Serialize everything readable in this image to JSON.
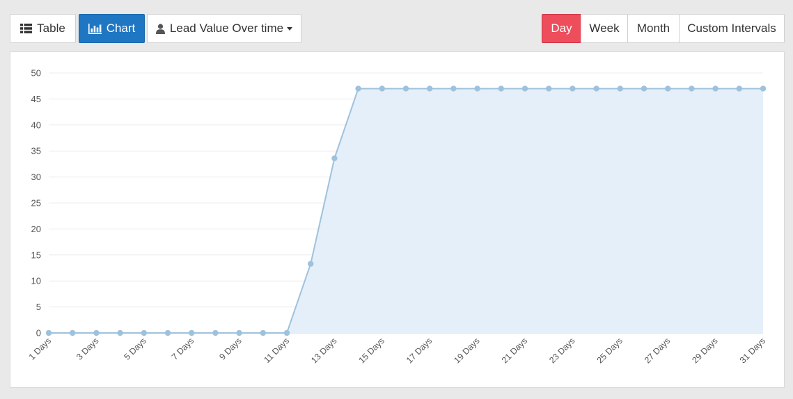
{
  "toolbar": {
    "table_label": "Table",
    "chart_label": "Chart",
    "metric_label": "Lead Value Over time",
    "intervals": [
      "Day",
      "Week",
      "Month",
      "Custom Intervals"
    ],
    "active_interval": "Day"
  },
  "colors": {
    "accent_blue": "#1f76c2",
    "accent_red": "#ee4d5c",
    "series_line": "#9ec2dc",
    "series_fill": "#e4eff9"
  },
  "icons": {
    "table": "list-icon",
    "chart": "bar-chart-icon",
    "metric": "user-icon"
  },
  "chart_data": {
    "type": "area",
    "x": [
      "1 Days",
      "2 Days",
      "3 Days",
      "4 Days",
      "5 Days",
      "6 Days",
      "7 Days",
      "8 Days",
      "9 Days",
      "10 Days",
      "11 Days",
      "12 Days",
      "13 Days",
      "14 Days",
      "15 Days",
      "16 Days",
      "17 Days",
      "18 Days",
      "19 Days",
      "20 Days",
      "21 Days",
      "22 Days",
      "23 Days",
      "24 Days",
      "25 Days",
      "26 Days",
      "27 Days",
      "28 Days",
      "29 Days",
      "30 Days",
      "31 Days"
    ],
    "x_tick_labels": [
      "1 Days",
      "3 Days",
      "5 Days",
      "7 Days",
      "9 Days",
      "11 Days",
      "13 Days",
      "15 Days",
      "17 Days",
      "19 Days",
      "21 Days",
      "23 Days",
      "25 Days",
      "27 Days",
      "29 Days",
      "31 Days"
    ],
    "series": [
      {
        "values": [
          0,
          0,
          0,
          0,
          0,
          0,
          0,
          0,
          0,
          0,
          0,
          13.3,
          33.6,
          47,
          47,
          47,
          47,
          47,
          47,
          47,
          47,
          47,
          47,
          47,
          47,
          47,
          47,
          47,
          47,
          47,
          47
        ]
      }
    ],
    "ylim": [
      0,
      50
    ],
    "y_ticks": [
      0,
      5,
      10,
      15,
      20,
      25,
      30,
      35,
      40,
      45,
      50
    ],
    "grid": true,
    "legend": "none"
  }
}
